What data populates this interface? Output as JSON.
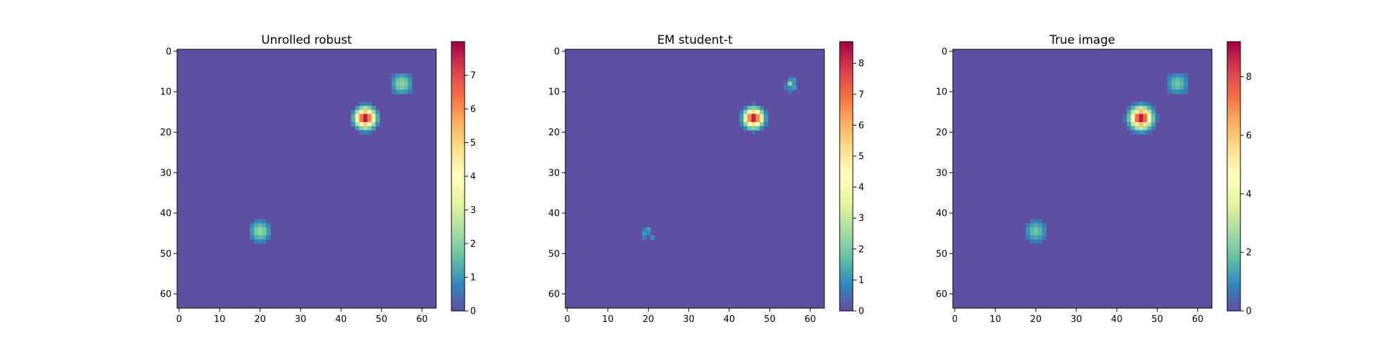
{
  "chart_data": [
    {
      "type": "heatmap",
      "title": "Unrolled robust",
      "xlabel": "",
      "ylabel": "",
      "grid_size": [
        64,
        64
      ],
      "xlim": [
        -0.5,
        63.5
      ],
      "ylim": [
        63.5,
        -0.5
      ],
      "xticks": [
        0,
        10,
        20,
        30,
        40,
        50,
        60
      ],
      "yticks": [
        0,
        10,
        20,
        30,
        40,
        50,
        60
      ],
      "colormap": "Spectral_r",
      "colorbar": {
        "min": 0,
        "max": 8.0,
        "ticks": [
          0,
          1,
          2,
          3,
          4,
          5,
          6,
          7
        ]
      },
      "background_value": 0,
      "blobs": [
        {
          "cx": 46,
          "cy": 16.5,
          "peak": 8.0,
          "sigma": 1.6
        },
        {
          "cx": 55,
          "cy": 8,
          "peak": 2.2,
          "sigma": 1.7
        },
        {
          "cx": 20,
          "cy": 44.5,
          "peak": 2.2,
          "sigma": 1.7
        }
      ],
      "pixelated": true
    },
    {
      "type": "heatmap",
      "title": "EM student-t",
      "xlabel": "",
      "ylabel": "",
      "grid_size": [
        64,
        64
      ],
      "xlim": [
        -0.5,
        63.5
      ],
      "ylim": [
        63.5,
        -0.5
      ],
      "xticks": [
        0,
        10,
        20,
        30,
        40,
        50,
        60
      ],
      "yticks": [
        0,
        10,
        20,
        30,
        40,
        50,
        60
      ],
      "colormap": "Spectral_r",
      "colorbar": {
        "min": 0,
        "max": 8.7,
        "ticks": [
          0,
          1,
          2,
          3,
          4,
          5,
          6,
          7,
          8
        ]
      },
      "background_value": 0,
      "blobs": [
        {
          "cx": 46,
          "cy": 16.5,
          "peak": 8.7,
          "sigma": 1.5
        },
        {
          "cx": 55,
          "cy": 8,
          "peak": 1.5,
          "sigma": 1.2,
          "noisy": true
        },
        {
          "cx": 20,
          "cy": 45,
          "peak": 1.3,
          "sigma": 1.2,
          "noisy": true
        }
      ],
      "pixelated": true
    },
    {
      "type": "heatmap",
      "title": "True image",
      "xlabel": "",
      "ylabel": "",
      "grid_size": [
        64,
        64
      ],
      "xlim": [
        -0.5,
        63.5
      ],
      "ylim": [
        63.5,
        -0.5
      ],
      "xticks": [
        0,
        10,
        20,
        30,
        40,
        50,
        60
      ],
      "yticks": [
        0,
        10,
        20,
        30,
        40,
        50,
        60
      ],
      "colormap": "Spectral_r",
      "colorbar": {
        "min": 0,
        "max": 9.2,
        "ticks": [
          0,
          2,
          4,
          6,
          8
        ]
      },
      "background_value": 0,
      "blobs": [
        {
          "cx": 46,
          "cy": 16.5,
          "peak": 9.2,
          "sigma": 1.7
        },
        {
          "cx": 55,
          "cy": 8,
          "peak": 2.0,
          "sigma": 1.8
        },
        {
          "cx": 20,
          "cy": 44.5,
          "peak": 2.0,
          "sigma": 1.8
        }
      ],
      "pixelated": false
    }
  ]
}
